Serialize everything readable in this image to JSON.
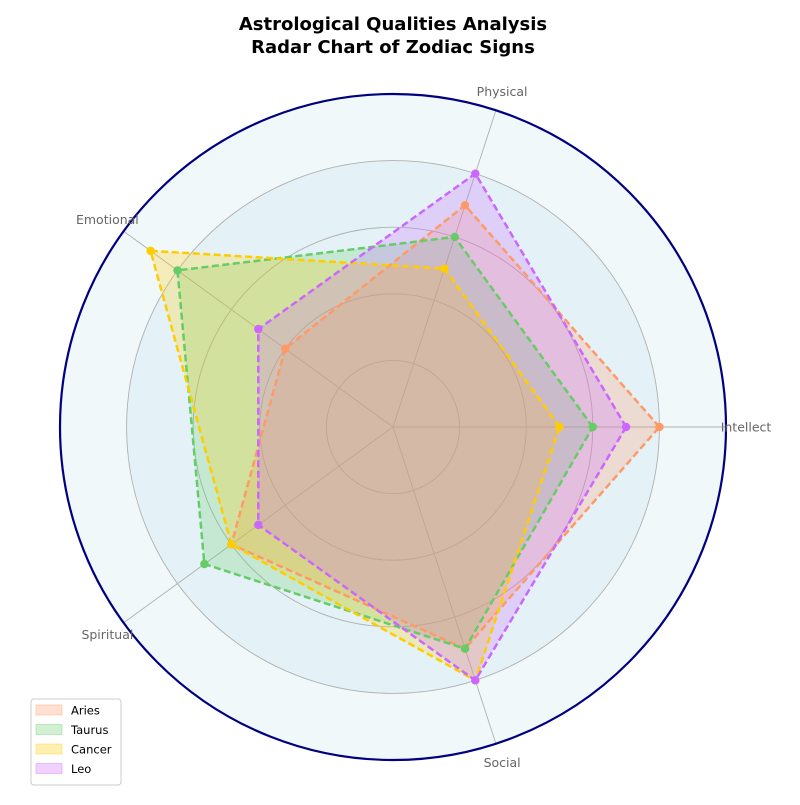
{
  "chart_data": {
    "type": "radar",
    "title_lines": [
      "Astrological Qualities Analysis",
      "Radar Chart of Zodiac Signs"
    ],
    "axes": [
      "Intellect",
      "Physical",
      "Emotional",
      "Spiritual",
      "Social"
    ],
    "rlim": [
      0,
      10
    ],
    "rgrid": [
      2,
      4,
      6,
      8,
      10
    ],
    "grid": true,
    "background_color": "#f0f8fa",
    "ring_fill_color": "#e4f2f7",
    "frame_color": "#000080",
    "legend_position": "lower-left",
    "series": [
      {
        "name": "Aries",
        "color": "#ff9966",
        "values": [
          8,
          7,
          4,
          6,
          7
        ]
      },
      {
        "name": "Taurus",
        "color": "#66cc66",
        "values": [
          6,
          6,
          8,
          7,
          7
        ]
      },
      {
        "name": "Cancer",
        "color": "#ffcc00",
        "values": [
          5,
          5,
          9,
          6,
          8
        ]
      },
      {
        "name": "Leo",
        "color": "#cc66ff",
        "values": [
          7,
          8,
          5,
          5,
          8
        ]
      }
    ]
  }
}
